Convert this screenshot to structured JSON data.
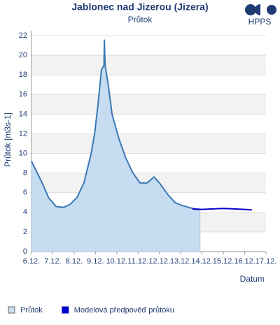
{
  "logo": "HPPS",
  "chart_data": {
    "type": "area-line",
    "title": "Jablonec nad Jizerou (Jizera)",
    "subtitle": "Průtok",
    "y_label": "Průtok [m3s-1]",
    "x_label": "Datum",
    "xlim": [
      6,
      17
    ],
    "ylim": [
      0,
      22.5
    ],
    "xticks": [
      {
        "value": 6,
        "label": "6.12."
      },
      {
        "value": 7,
        "label": "7.12."
      },
      {
        "value": 8,
        "label": "8.12."
      },
      {
        "value": 9,
        "label": "9.12."
      },
      {
        "value": 10,
        "label": "10.12."
      },
      {
        "value": 11,
        "label": "11.12."
      },
      {
        "value": 12,
        "label": "12.12."
      },
      {
        "value": 13,
        "label": "13.12."
      },
      {
        "value": 14,
        "label": "14.12."
      },
      {
        "value": 15,
        "label": "15.12."
      },
      {
        "value": 16,
        "label": "16.12."
      },
      {
        "value": 17,
        "label": "17.12."
      }
    ],
    "yticks": [
      0,
      2,
      4,
      6,
      8,
      10,
      12,
      14,
      16,
      18,
      20,
      22
    ],
    "grid": true,
    "series": [
      {
        "name": "Průtok",
        "color": "#3a78b5",
        "fill": "#c6dcf0",
        "x": [
          6.0,
          6.16,
          6.5,
          6.8,
          7.15,
          7.5,
          7.8,
          8.13,
          8.46,
          8.8,
          8.96,
          9.12,
          9.28,
          9.4,
          9.42,
          9.45,
          9.6,
          9.78,
          10.1,
          10.43,
          10.76,
          11.09,
          11.42,
          11.75,
          12.0,
          12.4,
          12.73,
          13.06,
          13.39,
          13.72,
          13.91
        ],
        "values": [
          9.2,
          8.5,
          7.0,
          5.5,
          4.6,
          4.5,
          4.8,
          5.5,
          7.0,
          10.0,
          12.0,
          15.0,
          18.5,
          19.0,
          21.6,
          19.0,
          17.0,
          14.0,
          11.5,
          9.5,
          8.0,
          7.0,
          7.0,
          7.6,
          7.0,
          5.8,
          5.0,
          4.7,
          4.5,
          4.3,
          4.3
        ]
      },
      {
        "name": "Modelová předpověď průtoku",
        "color": "#0000cc",
        "x": [
          13.55,
          14.0,
          14.5,
          15.0,
          15.5,
          16.0,
          16.34
        ],
        "values": [
          4.35,
          4.3,
          4.35,
          4.4,
          4.35,
          4.3,
          4.25
        ]
      }
    ]
  }
}
